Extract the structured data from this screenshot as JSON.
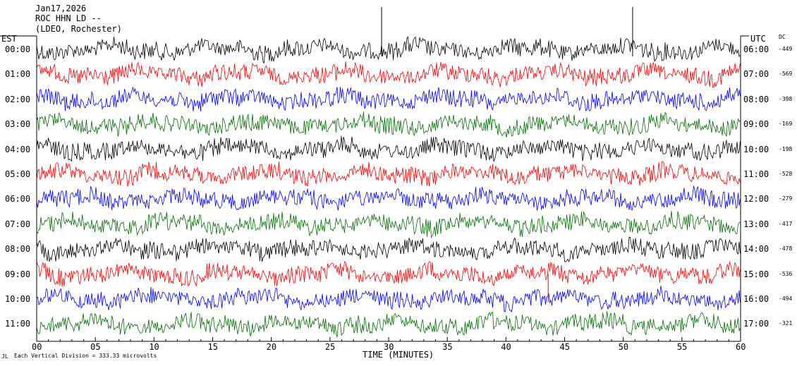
{
  "header": {
    "date": "Jan17,2026",
    "station": "ROC HHN LD --",
    "network": "(LDEO, Rochester)"
  },
  "left_tz": "EST",
  "right_tz": "UTC",
  "dc_label": "DC",
  "footer": {
    "scale_note": "Each Vertical Division =  333.33 microvolts",
    "corner_mark": "JL"
  },
  "chart_data": {
    "type": "line",
    "title": "",
    "xlabel": "TIME (MINUTES)",
    "ylabel": "",
    "xlim": [
      0,
      60
    ],
    "x_ticks": [
      "00",
      "05",
      "10",
      "15",
      "20",
      "25",
      "30",
      "35",
      "40",
      "45",
      "50",
      "55",
      "60"
    ],
    "trace_colors": [
      "#000000",
      "#ff0000",
      "#0000ff",
      "#007000"
    ],
    "series": [
      {
        "est": "00:00",
        "utc": "06:00",
        "dc": "-449",
        "color": "#000000"
      },
      {
        "est": "01:00",
        "utc": "07:00",
        "dc": "-569",
        "color": "#ff0000"
      },
      {
        "est": "02:00",
        "utc": "08:00",
        "dc": "-398",
        "color": "#0000ff"
      },
      {
        "est": "03:00",
        "utc": "09:00",
        "dc": "-169",
        "color": "#007000"
      },
      {
        "est": "04:00",
        "utc": "10:00",
        "dc": "-198",
        "color": "#000000"
      },
      {
        "est": "05:00",
        "utc": "11:00",
        "dc": "-528",
        "color": "#ff0000"
      },
      {
        "est": "06:00",
        "utc": "12:00",
        "dc": "-279",
        "color": "#0000ff"
      },
      {
        "est": "07:00",
        "utc": "13:00",
        "dc": "-417",
        "color": "#007000"
      },
      {
        "est": "08:00",
        "utc": "14:00",
        "dc": "-478",
        "color": "#000000"
      },
      {
        "est": "09:00",
        "utc": "15:00",
        "dc": "-536",
        "color": "#ff0000"
      },
      {
        "est": "10:00",
        "utc": "16:00",
        "dc": "-494",
        "color": "#0000ff"
      },
      {
        "est": "11:00",
        "utc": "17:00",
        "dc": "-321",
        "color": "#007000"
      }
    ],
    "spikes": [
      {
        "row": 0,
        "minute": 29.4,
        "color": "#000000",
        "up": 60
      },
      {
        "row": 0,
        "minute": 50.8,
        "color": "#000000",
        "up": 60
      },
      {
        "row": 9,
        "minute": 43.6,
        "color": "#ff0000",
        "down": 40
      }
    ]
  }
}
